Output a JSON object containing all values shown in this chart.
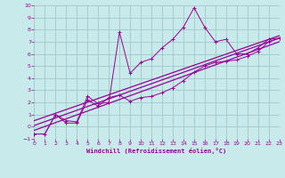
{
  "bg_color": "#c8eaea",
  "grid_color": "#a0c8c8",
  "line_color": "#990099",
  "xlabel": "Windchill (Refroidissement éolien,°C)",
  "xlim": [
    0,
    23
  ],
  "ylim": [
    -1,
    10
  ],
  "xticks": [
    0,
    1,
    2,
    3,
    4,
    5,
    6,
    7,
    8,
    9,
    10,
    11,
    12,
    13,
    14,
    15,
    16,
    17,
    18,
    19,
    20,
    21,
    22,
    23
  ],
  "yticks": [
    -1,
    0,
    1,
    2,
    3,
    4,
    5,
    6,
    7,
    8,
    9,
    10
  ],
  "series1_x": [
    0,
    1,
    2,
    3,
    4,
    5,
    6,
    7,
    8,
    9,
    10,
    11,
    12,
    13,
    14,
    15,
    16,
    17,
    18,
    19,
    20,
    21,
    22,
    23
  ],
  "series1_y": [
    -0.6,
    -0.6,
    1.0,
    0.5,
    0.4,
    2.5,
    1.9,
    2.0,
    7.8,
    4.4,
    5.3,
    5.6,
    6.5,
    7.2,
    8.2,
    9.8,
    8.2,
    7.0,
    7.2,
    6.0,
    6.0,
    6.5,
    7.2,
    7.3
  ],
  "series2_x": [
    0,
    1,
    2,
    3,
    4,
    5,
    6,
    7,
    8,
    9,
    10,
    11,
    12,
    13,
    14,
    15,
    16,
    17,
    18,
    19,
    20,
    21,
    22,
    23
  ],
  "series2_y": [
    -0.6,
    -0.6,
    1.0,
    0.3,
    0.3,
    2.2,
    1.7,
    2.4,
    2.6,
    2.1,
    2.4,
    2.5,
    2.8,
    3.2,
    3.8,
    4.5,
    5.0,
    5.3,
    5.4,
    5.5,
    5.8,
    6.2,
    7.0,
    7.3
  ],
  "line1_x": [
    0,
    23
  ],
  "line1_y": [
    -0.3,
    7.0
  ],
  "line2_x": [
    0,
    23
  ],
  "line2_y": [
    0.1,
    7.3
  ],
  "line3_x": [
    0,
    23
  ],
  "line3_y": [
    0.5,
    7.5
  ]
}
